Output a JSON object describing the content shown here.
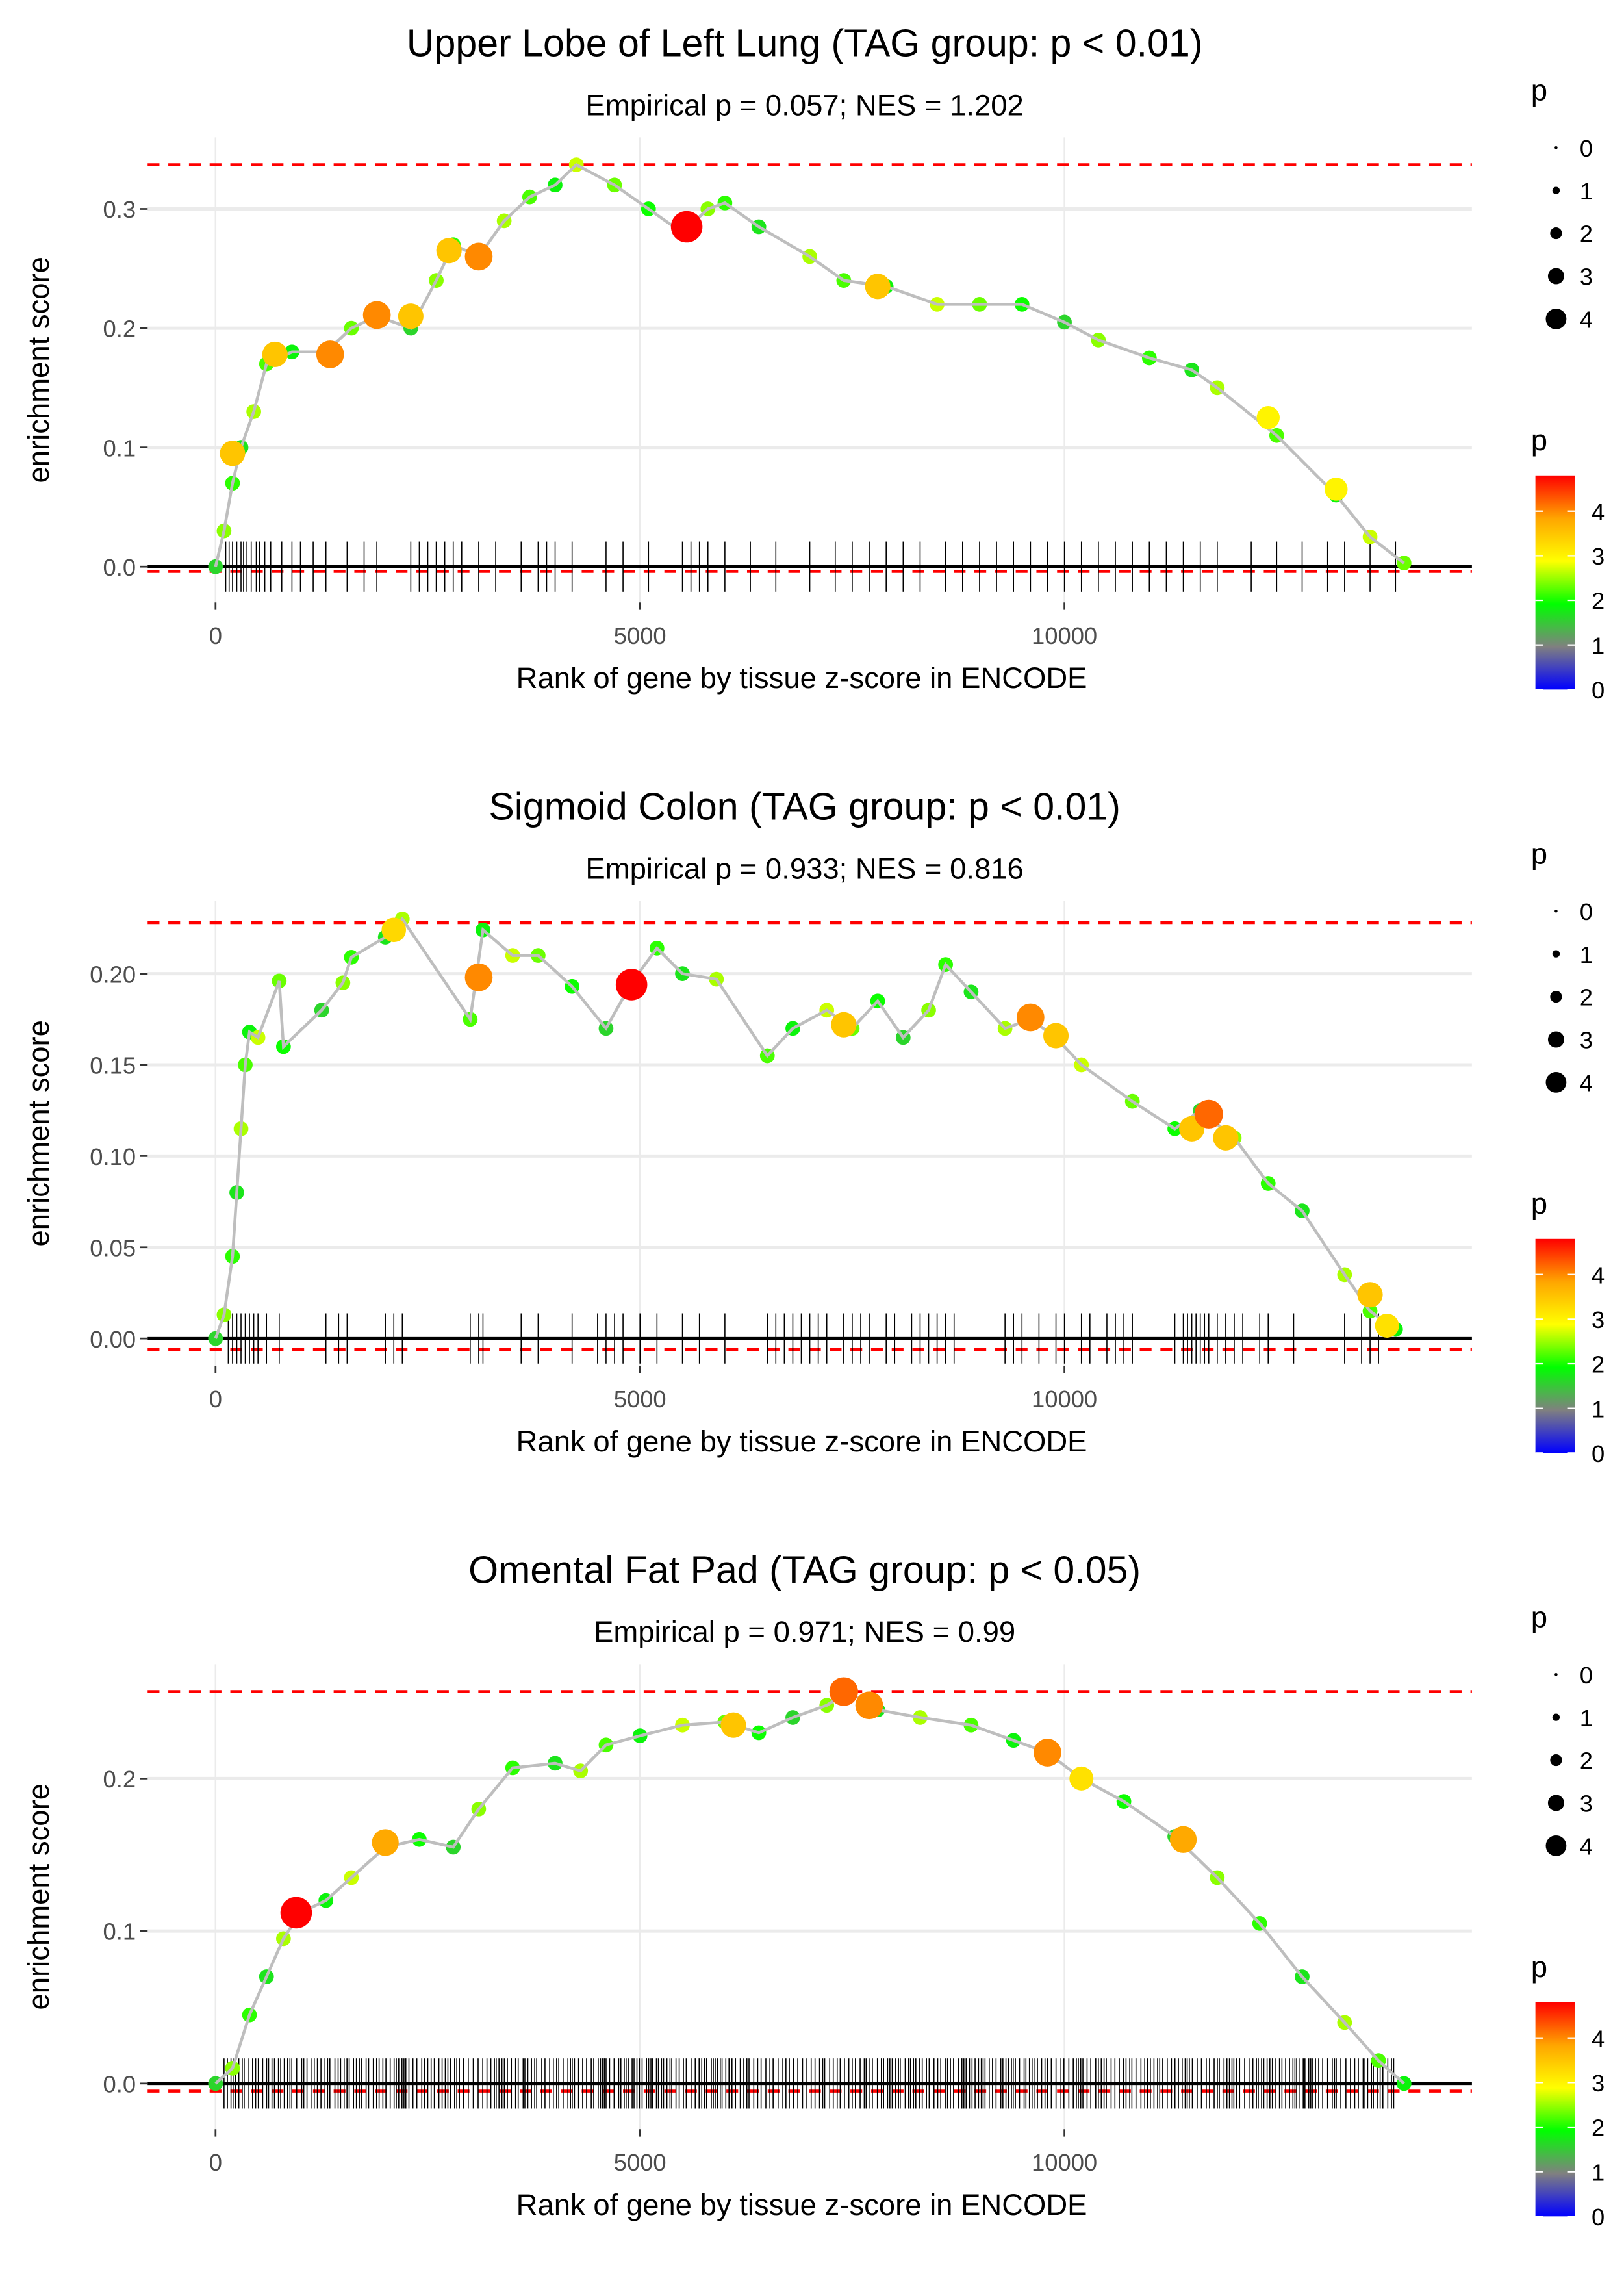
{
  "chart_data": [
    {
      "type": "line",
      "title": "Upper Lobe of Left Lung (TAG group: p < 0.01)",
      "subtitle": "Empirical p = 0.057; NES = 1.202",
      "xlabel": "Rank of gene by tissue z-score in ENCODE",
      "ylabel": "enrichment score",
      "xlim": [
        -800,
        14800
      ],
      "ylim": [
        -0.03,
        0.36
      ],
      "x_ticks": [
        0,
        5000,
        10000
      ],
      "x_tick_labels": [
        "0",
        "5000",
        "10000"
      ],
      "y_ticks": [
        0.0,
        0.1,
        0.2,
        0.3
      ],
      "y_tick_labels": [
        "0.0",
        "0.1",
        "0.2",
        "0.3"
      ],
      "max_line": 0.337,
      "min_line": -0.004,
      "grid": true,
      "curve": [
        [
          0,
          0
        ],
        [
          100,
          0.03
        ],
        [
          200,
          0.07
        ],
        [
          300,
          0.1
        ],
        [
          450,
          0.13
        ],
        [
          600,
          0.17
        ],
        [
          900,
          0.18
        ],
        [
          1300,
          0.18
        ],
        [
          1600,
          0.2
        ],
        [
          1900,
          0.21
        ],
        [
          2300,
          0.2
        ],
        [
          2600,
          0.24
        ],
        [
          2800,
          0.27
        ],
        [
          3100,
          0.26
        ],
        [
          3400,
          0.29
        ],
        [
          3700,
          0.31
        ],
        [
          4000,
          0.32
        ],
        [
          4250,
          0.337
        ],
        [
          4700,
          0.32
        ],
        [
          5100,
          0.3
        ],
        [
          5500,
          0.28
        ],
        [
          5800,
          0.3
        ],
        [
          6000,
          0.305
        ],
        [
          6400,
          0.285
        ],
        [
          7000,
          0.26
        ],
        [
          7400,
          0.24
        ],
        [
          7900,
          0.235
        ],
        [
          8500,
          0.22
        ],
        [
          9000,
          0.22
        ],
        [
          9500,
          0.22
        ],
        [
          10000,
          0.205
        ],
        [
          10400,
          0.19
        ],
        [
          11000,
          0.175
        ],
        [
          11500,
          0.165
        ],
        [
          11800,
          0.15
        ],
        [
          12500,
          0.11
        ],
        [
          13200,
          0.06
        ],
        [
          13600,
          0.025
        ],
        [
          14000,
          0.003
        ]
      ],
      "points": [
        [
          200,
          0.095,
          3.5
        ],
        [
          700,
          0.178,
          3.5
        ],
        [
          1350,
          0.178,
          4.0
        ],
        [
          1900,
          0.211,
          4.0
        ],
        [
          2300,
          0.21,
          3.5
        ],
        [
          2750,
          0.265,
          3.5
        ],
        [
          3100,
          0.26,
          4.0
        ],
        [
          5550,
          0.285,
          4.8
        ],
        [
          7800,
          0.235,
          3.5
        ],
        [
          12400,
          0.125,
          3.0
        ],
        [
          13200,
          0.065,
          3.0
        ]
      ],
      "gene_ticks_x": [
        120,
        160,
        200,
        250,
        300,
        330,
        360,
        420,
        480,
        520,
        580,
        650,
        780,
        900,
        1000,
        1150,
        1300,
        1550,
        1750,
        1900,
        2300,
        2400,
        2500,
        2600,
        2700,
        2800,
        2900,
        3100,
        3300,
        3600,
        3800,
        3900,
        4000,
        4200,
        4600,
        4800,
        5100,
        5500,
        5600,
        5700,
        5800,
        6000,
        6300,
        6600,
        7000,
        7300,
        7500,
        7700,
        7900,
        8100,
        8300,
        8600,
        8800,
        9000,
        9200,
        9400,
        9600,
        9800,
        10000,
        10200,
        10400,
        10600,
        10800,
        11000,
        11200,
        11400,
        11600,
        11800,
        12200,
        12500,
        12800,
        13100,
        13300,
        13600,
        13900
      ],
      "size_legend": {
        "title": "p",
        "labels": [
          "0",
          "1",
          "2",
          "3",
          "4"
        ]
      },
      "color_legend": {
        "title": "p",
        "labels": [
          "4",
          "3",
          "2",
          "1",
          "0"
        ],
        "colors": [
          "#ff0000",
          "#ffa500",
          "#ffff00",
          "#00ff00",
          "#808080",
          "#0000ff"
        ]
      }
    },
    {
      "type": "line",
      "title": "Sigmoid Colon (TAG group: p < 0.01)",
      "subtitle": "Empirical p = 0.933; NES = 0.816",
      "xlabel": "Rank of gene by tissue z-score in ENCODE",
      "ylabel": "enrichment score",
      "xlim": [
        -800,
        14800
      ],
      "ylim": [
        -0.015,
        0.24
      ],
      "x_ticks": [
        0,
        5000,
        10000
      ],
      "x_tick_labels": [
        "0",
        "5000",
        "10000"
      ],
      "y_ticks": [
        0.0,
        0.05,
        0.1,
        0.15,
        0.2
      ],
      "y_tick_labels": [
        "0.00",
        "0.05",
        "0.10",
        "0.15",
        "0.20"
      ],
      "max_line": 0.228,
      "min_line": -0.006,
      "grid": true,
      "curve": [
        [
          0,
          0.0
        ],
        [
          100,
          0.013
        ],
        [
          200,
          0.045
        ],
        [
          250,
          0.08
        ],
        [
          300,
          0.115
        ],
        [
          350,
          0.15
        ],
        [
          400,
          0.168
        ],
        [
          500,
          0.165
        ],
        [
          750,
          0.196
        ],
        [
          800,
          0.16
        ],
        [
          1250,
          0.18
        ],
        [
          1500,
          0.195
        ],
        [
          1600,
          0.209
        ],
        [
          2000,
          0.22
        ],
        [
          2200,
          0.23
        ],
        [
          3000,
          0.175
        ],
        [
          3150,
          0.224
        ],
        [
          3500,
          0.21
        ],
        [
          3800,
          0.21
        ],
        [
          4200,
          0.193
        ],
        [
          4600,
          0.17
        ],
        [
          4900,
          0.195
        ],
        [
          5200,
          0.214
        ],
        [
          5500,
          0.2
        ],
        [
          5900,
          0.197
        ],
        [
          6500,
          0.155
        ],
        [
          6800,
          0.17
        ],
        [
          7200,
          0.18
        ],
        [
          7500,
          0.17
        ],
        [
          7800,
          0.185
        ],
        [
          8100,
          0.165
        ],
        [
          8400,
          0.18
        ],
        [
          8600,
          0.205
        ],
        [
          8900,
          0.19
        ],
        [
          9300,
          0.17
        ],
        [
          9600,
          0.175
        ],
        [
          9900,
          0.165
        ],
        [
          10200,
          0.15
        ],
        [
          10800,
          0.13
        ],
        [
          11300,
          0.115
        ],
        [
          11600,
          0.125
        ],
        [
          12000,
          0.11
        ],
        [
          12400,
          0.085
        ],
        [
          12800,
          0.07
        ],
        [
          13300,
          0.035
        ],
        [
          13600,
          0.015
        ],
        [
          13900,
          0.005
        ]
      ],
      "points": [
        [
          2100,
          0.224,
          3.3
        ],
        [
          3100,
          0.198,
          4.0
        ],
        [
          4900,
          0.194,
          4.8
        ],
        [
          7400,
          0.172,
          3.5
        ],
        [
          9600,
          0.176,
          4.0
        ],
        [
          9900,
          0.166,
          3.5
        ],
        [
          11500,
          0.115,
          3.5
        ],
        [
          11700,
          0.123,
          4.2
        ],
        [
          11900,
          0.11,
          3.5
        ],
        [
          13600,
          0.024,
          3.5
        ],
        [
          13800,
          0.007,
          3.2
        ]
      ],
      "gene_ticks_x": [
        150,
        200,
        250,
        300,
        350,
        400,
        450,
        500,
        600,
        750,
        1300,
        1450,
        1550,
        2000,
        2100,
        2200,
        3000,
        3100,
        3150,
        3600,
        3800,
        4200,
        4500,
        4600,
        4700,
        4800,
        5000,
        5200,
        5500,
        5700,
        6000,
        6500,
        6600,
        6700,
        6800,
        6900,
        7000,
        7100,
        7200,
        7400,
        7500,
        7600,
        7700,
        7900,
        8000,
        8200,
        8300,
        8400,
        8500,
        8600,
        8700,
        9300,
        9400,
        9500,
        9700,
        9900,
        10000,
        10200,
        10300,
        10500,
        10600,
        10700,
        10800,
        11300,
        11400,
        11450,
        11500,
        11550,
        11600,
        11650,
        11700,
        11800,
        11900,
        12000,
        12100,
        12300,
        12400,
        12700,
        13300,
        13500,
        13600,
        13700
      ],
      "size_legend": {
        "title": "p",
        "labels": [
          "0",
          "1",
          "2",
          "3",
          "4"
        ]
      },
      "color_legend": {
        "title": "p",
        "labels": [
          "4",
          "3",
          "2",
          "1",
          "0"
        ],
        "colors": [
          "#ff0000",
          "#ffa500",
          "#ffff00",
          "#00ff00",
          "#808080",
          "#0000ff"
        ]
      }
    },
    {
      "type": "line",
      "title": "Omental Fat Pad (TAG group: p < 0.05)",
      "subtitle": "Empirical p = 0.971; NES = 0.99",
      "xlabel": "Rank of gene by tissue z-score in ENCODE",
      "ylabel": "enrichment score",
      "xlim": [
        -800,
        14800
      ],
      "ylim": [
        -0.03,
        0.275
      ],
      "x_ticks": [
        0,
        5000,
        10000
      ],
      "x_tick_labels": [
        "0",
        "5000",
        "10000"
      ],
      "y_ticks": [
        0.0,
        0.1,
        0.2
      ],
      "y_tick_labels": [
        "0.0",
        "0.1",
        "0.2"
      ],
      "max_line": 0.257,
      "min_line": -0.005,
      "grid": true,
      "curve": [
        [
          0,
          0.0
        ],
        [
          200,
          0.01
        ],
        [
          400,
          0.045
        ],
        [
          600,
          0.07
        ],
        [
          800,
          0.095
        ],
        [
          1000,
          0.112
        ],
        [
          1300,
          0.12
        ],
        [
          1600,
          0.135
        ],
        [
          2000,
          0.155
        ],
        [
          2400,
          0.16
        ],
        [
          2800,
          0.155
        ],
        [
          3100,
          0.18
        ],
        [
          3500,
          0.207
        ],
        [
          4000,
          0.21
        ],
        [
          4300,
          0.205
        ],
        [
          4600,
          0.222
        ],
        [
          5000,
          0.228
        ],
        [
          5500,
          0.235
        ],
        [
          6000,
          0.237
        ],
        [
          6400,
          0.23
        ],
        [
          6800,
          0.24
        ],
        [
          7200,
          0.248
        ],
        [
          7450,
          0.257
        ],
        [
          7800,
          0.245
        ],
        [
          8300,
          0.24
        ],
        [
          8900,
          0.235
        ],
        [
          9400,
          0.225
        ],
        [
          9800,
          0.217
        ],
        [
          10200,
          0.2
        ],
        [
          10700,
          0.185
        ],
        [
          11300,
          0.162
        ],
        [
          11800,
          0.135
        ],
        [
          12300,
          0.105
        ],
        [
          12800,
          0.07
        ],
        [
          13300,
          0.04
        ],
        [
          13700,
          0.015
        ],
        [
          14000,
          0.0
        ]
      ],
      "points": [
        [
          950,
          0.112,
          4.8
        ],
        [
          2000,
          0.158,
          3.8
        ],
        [
          6100,
          0.235,
          3.5
        ],
        [
          7400,
          0.257,
          4.2
        ],
        [
          7700,
          0.248,
          4.0
        ],
        [
          9800,
          0.217,
          4.0
        ],
        [
          10200,
          0.2,
          3.2
        ],
        [
          11400,
          0.16,
          3.8
        ]
      ],
      "gene_ticks_density": "dense",
      "gene_ticks_range": [
        100,
        13900
      ],
      "size_legend": {
        "title": "p",
        "labels": [
          "0",
          "1",
          "2",
          "3",
          "4"
        ]
      },
      "color_legend": {
        "title": "p",
        "labels": [
          "4",
          "3",
          "2",
          "1",
          "0"
        ],
        "colors": [
          "#ff0000",
          "#ffa500",
          "#ffff00",
          "#00ff00",
          "#808080",
          "#0000ff"
        ]
      }
    }
  ]
}
